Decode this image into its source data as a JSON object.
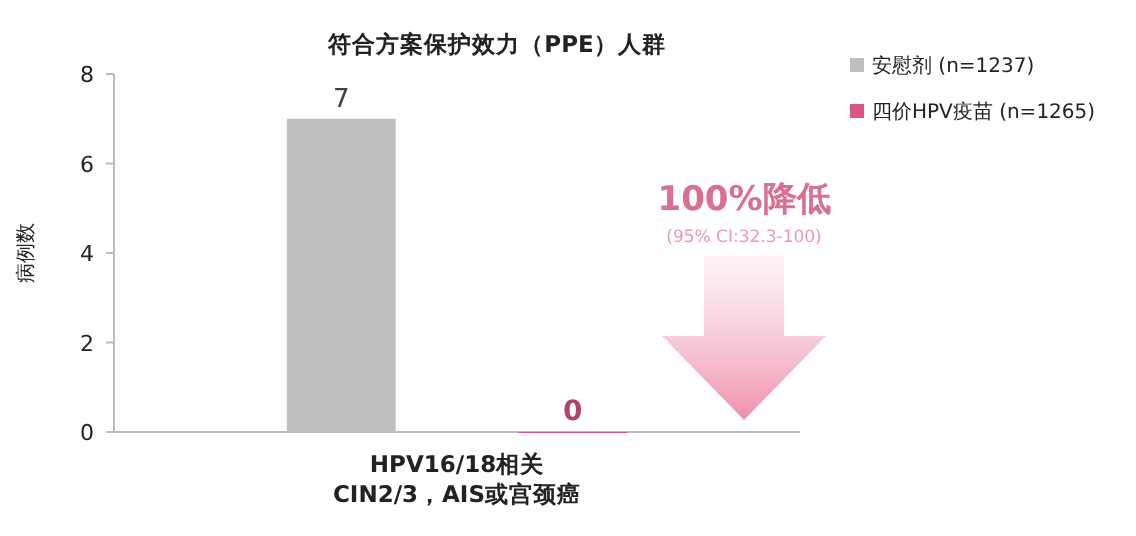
{
  "chart_data": {
    "type": "bar",
    "title": "符合方案保护效力（PPE）人群",
    "ylabel": "病例数",
    "categories": [
      "HPV16/18相关\nCIN2/3，AIS或宫颈癌"
    ],
    "series": [
      {
        "name": "安慰剂 (n=1237)",
        "color": "#bfbfbf",
        "values": [
          7
        ]
      },
      {
        "name": "四价HPV疫苗 (n=1265)",
        "color": "#d9577e",
        "values": [
          0
        ]
      }
    ],
    "ylim": [
      0,
      8
    ],
    "yticks": [
      0,
      2,
      4,
      6,
      8
    ],
    "grid": false,
    "legend": "top right",
    "data_labels": true,
    "annotations": [
      "100%降低",
      "(95% CI:32.3-100)"
    ]
  }
}
